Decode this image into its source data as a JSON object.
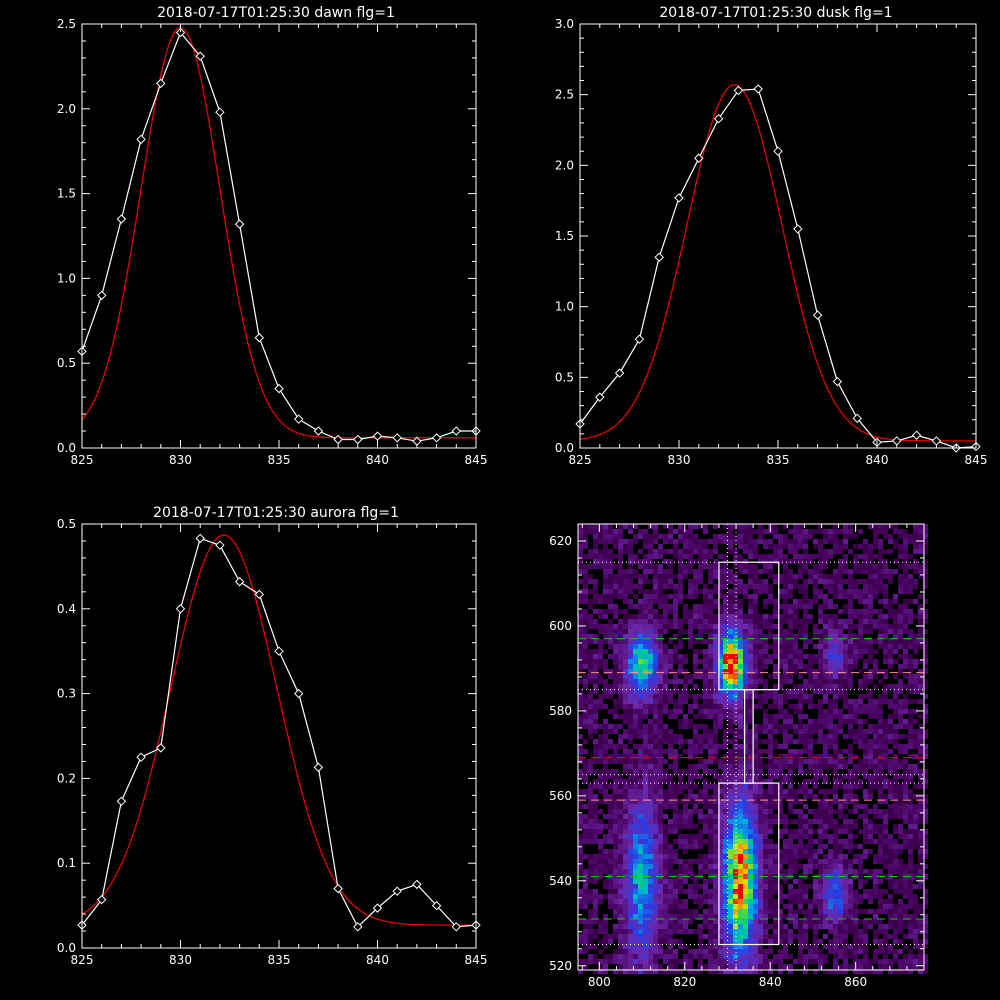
{
  "colors": {
    "background": "#000000",
    "axes": "#ffffff",
    "observed": "#ffffff",
    "fit": "#e00000",
    "dotted": "#ffffff",
    "green_dash": "#00d000",
    "red_dash": "#e00000",
    "pink_dash": "#ff9090"
  },
  "chart_data": [
    {
      "type": "line",
      "title": "2018-07-17T01:25:30 dawn flg=1",
      "xlim": [
        825,
        845
      ],
      "ylim": [
        0,
        2.5
      ],
      "xticks": [
        "825",
        "830",
        "835",
        "840",
        "845"
      ],
      "yticks": [
        "0.0",
        "0.5",
        "1.0",
        "1.5",
        "2.0",
        "2.5"
      ],
      "xtick_values": [
        825,
        830,
        835,
        840,
        845
      ],
      "ytick_values": [
        0,
        0.5,
        1.0,
        1.5,
        2.0,
        2.5
      ],
      "series": [
        {
          "x": [
            825,
            826,
            827,
            828,
            829,
            830,
            831,
            832,
            833,
            834,
            835,
            836,
            837,
            838,
            839,
            840,
            841,
            842,
            843,
            844,
            845
          ],
          "values": [
            0.57,
            0.9,
            1.35,
            1.82,
            2.15,
            2.45,
            2.31,
            1.98,
            1.32,
            0.65,
            0.35,
            0.17,
            0.1,
            0.05,
            0.05,
            0.07,
            0.06,
            0.04,
            0.06,
            0.1,
            0.1
          ],
          "marker": "diamond",
          "color": "#ffffff"
        },
        {
          "fit": "gaussian",
          "center": 830.0,
          "sigma": 2.0,
          "amplitude": 2.42,
          "baseline": 0.06,
          "color": "#e00000"
        }
      ]
    },
    {
      "type": "line",
      "title": "2018-07-17T01:25:30 dusk flg=1",
      "xlim": [
        825,
        845
      ],
      "ylim": [
        0,
        3.0
      ],
      "xticks": [
        "825",
        "830",
        "835",
        "840",
        "845"
      ],
      "yticks": [
        "0.0",
        "0.5",
        "1.0",
        "1.5",
        "2.0",
        "2.5",
        "3.0"
      ],
      "xtick_values": [
        825,
        830,
        835,
        840,
        845
      ],
      "ytick_values": [
        0,
        0.5,
        1.0,
        1.5,
        2.0,
        2.5,
        3.0
      ],
      "series": [
        {
          "x": [
            825,
            826,
            827,
            828,
            829,
            830,
            831,
            832,
            833,
            834,
            835,
            836,
            837,
            838,
            839,
            840,
            841,
            842,
            843,
            844,
            845
          ],
          "values": [
            0.17,
            0.36,
            0.53,
            0.77,
            1.35,
            1.77,
            2.05,
            2.33,
            2.53,
            2.54,
            2.1,
            1.55,
            0.94,
            0.47,
            0.21,
            0.04,
            0.05,
            0.09,
            0.05,
            0.0,
            0.01
          ],
          "marker": "diamond",
          "color": "#ffffff"
        },
        {
          "fit": "gaussian",
          "center": 832.8,
          "sigma": 2.4,
          "amplitude": 2.52,
          "baseline": 0.05,
          "color": "#e00000"
        }
      ]
    },
    {
      "type": "line",
      "title": "2018-07-17T01:25:30 aurora flg=1",
      "xlim": [
        825,
        845
      ],
      "ylim": [
        0,
        0.5
      ],
      "xticks": [
        "825",
        "830",
        "835",
        "840",
        "845"
      ],
      "yticks": [
        "0.0",
        "0.1",
        "0.2",
        "0.3",
        "0.4",
        "0.5"
      ],
      "xtick_values": [
        825,
        830,
        835,
        840,
        845
      ],
      "ytick_values": [
        0,
        0.1,
        0.2,
        0.3,
        0.4,
        0.5
      ],
      "series": [
        {
          "x": [
            825,
            826,
            827,
            828,
            829,
            830,
            831,
            832,
            833,
            834,
            835,
            836,
            837,
            838,
            839,
            840,
            841,
            842,
            843,
            844,
            845
          ],
          "values": [
            0.027,
            0.057,
            0.173,
            0.225,
            0.236,
            0.4,
            0.483,
            0.475,
            0.432,
            0.417,
            0.35,
            0.3,
            0.213,
            0.07,
            0.025,
            0.047,
            0.067,
            0.075,
            0.05,
            0.025,
            0.027
          ],
          "marker": "diamond",
          "color": "#ffffff"
        },
        {
          "fit": "gaussian",
          "center": 832.2,
          "sigma": 2.7,
          "amplitude": 0.46,
          "baseline": 0.027,
          "color": "#e00000"
        }
      ]
    },
    {
      "type": "heatmap",
      "xlim": [
        795,
        876
      ],
      "ylim": [
        519,
        624
      ],
      "xticks": [
        "800",
        "820",
        "840",
        "860"
      ],
      "yticks": [
        "520",
        "540",
        "560",
        "580",
        "600",
        "620"
      ],
      "xtick_values": [
        800,
        820,
        840,
        860
      ],
      "ytick_values": [
        520,
        540,
        560,
        580,
        600,
        620
      ],
      "blobs": [
        {
          "x": 810,
          "y": 591,
          "sx": 2.4,
          "sy": 5,
          "amp": 0.55
        },
        {
          "x": 831,
          "y": 591,
          "sx": 2.2,
          "sy": 5,
          "amp": 0.95
        },
        {
          "x": 810,
          "y": 540,
          "sx": 2.6,
          "sy": 12,
          "amp": 0.45
        },
        {
          "x": 833,
          "y": 540,
          "sx": 2.6,
          "sy": 12,
          "amp": 0.85
        },
        {
          "x": 855,
          "y": 537,
          "sx": 2.0,
          "sy": 4,
          "amp": 0.35
        },
        {
          "x": 855,
          "y": 593,
          "sx": 2.0,
          "sy": 4,
          "amp": 0.2
        }
      ],
      "box_upper": {
        "x0": 828,
        "x1": 842,
        "y0": 585,
        "y1": 615
      },
      "box_lower": {
        "x0": 828,
        "x1": 842,
        "y0": 525,
        "y1": 563
      },
      "box_connector": {
        "x0": 834,
        "x1": 836,
        "y0": 563,
        "y1": 585
      },
      "vertical_dotted_x": [
        830,
        832
      ],
      "horizontal_dotted_y": [
        615,
        585,
        565,
        563,
        525
      ],
      "green_dashed_y": [
        597,
        541,
        531
      ],
      "red_dashed_y": [
        569
      ],
      "pink_dashed_y": [
        589,
        559
      ]
    }
  ]
}
